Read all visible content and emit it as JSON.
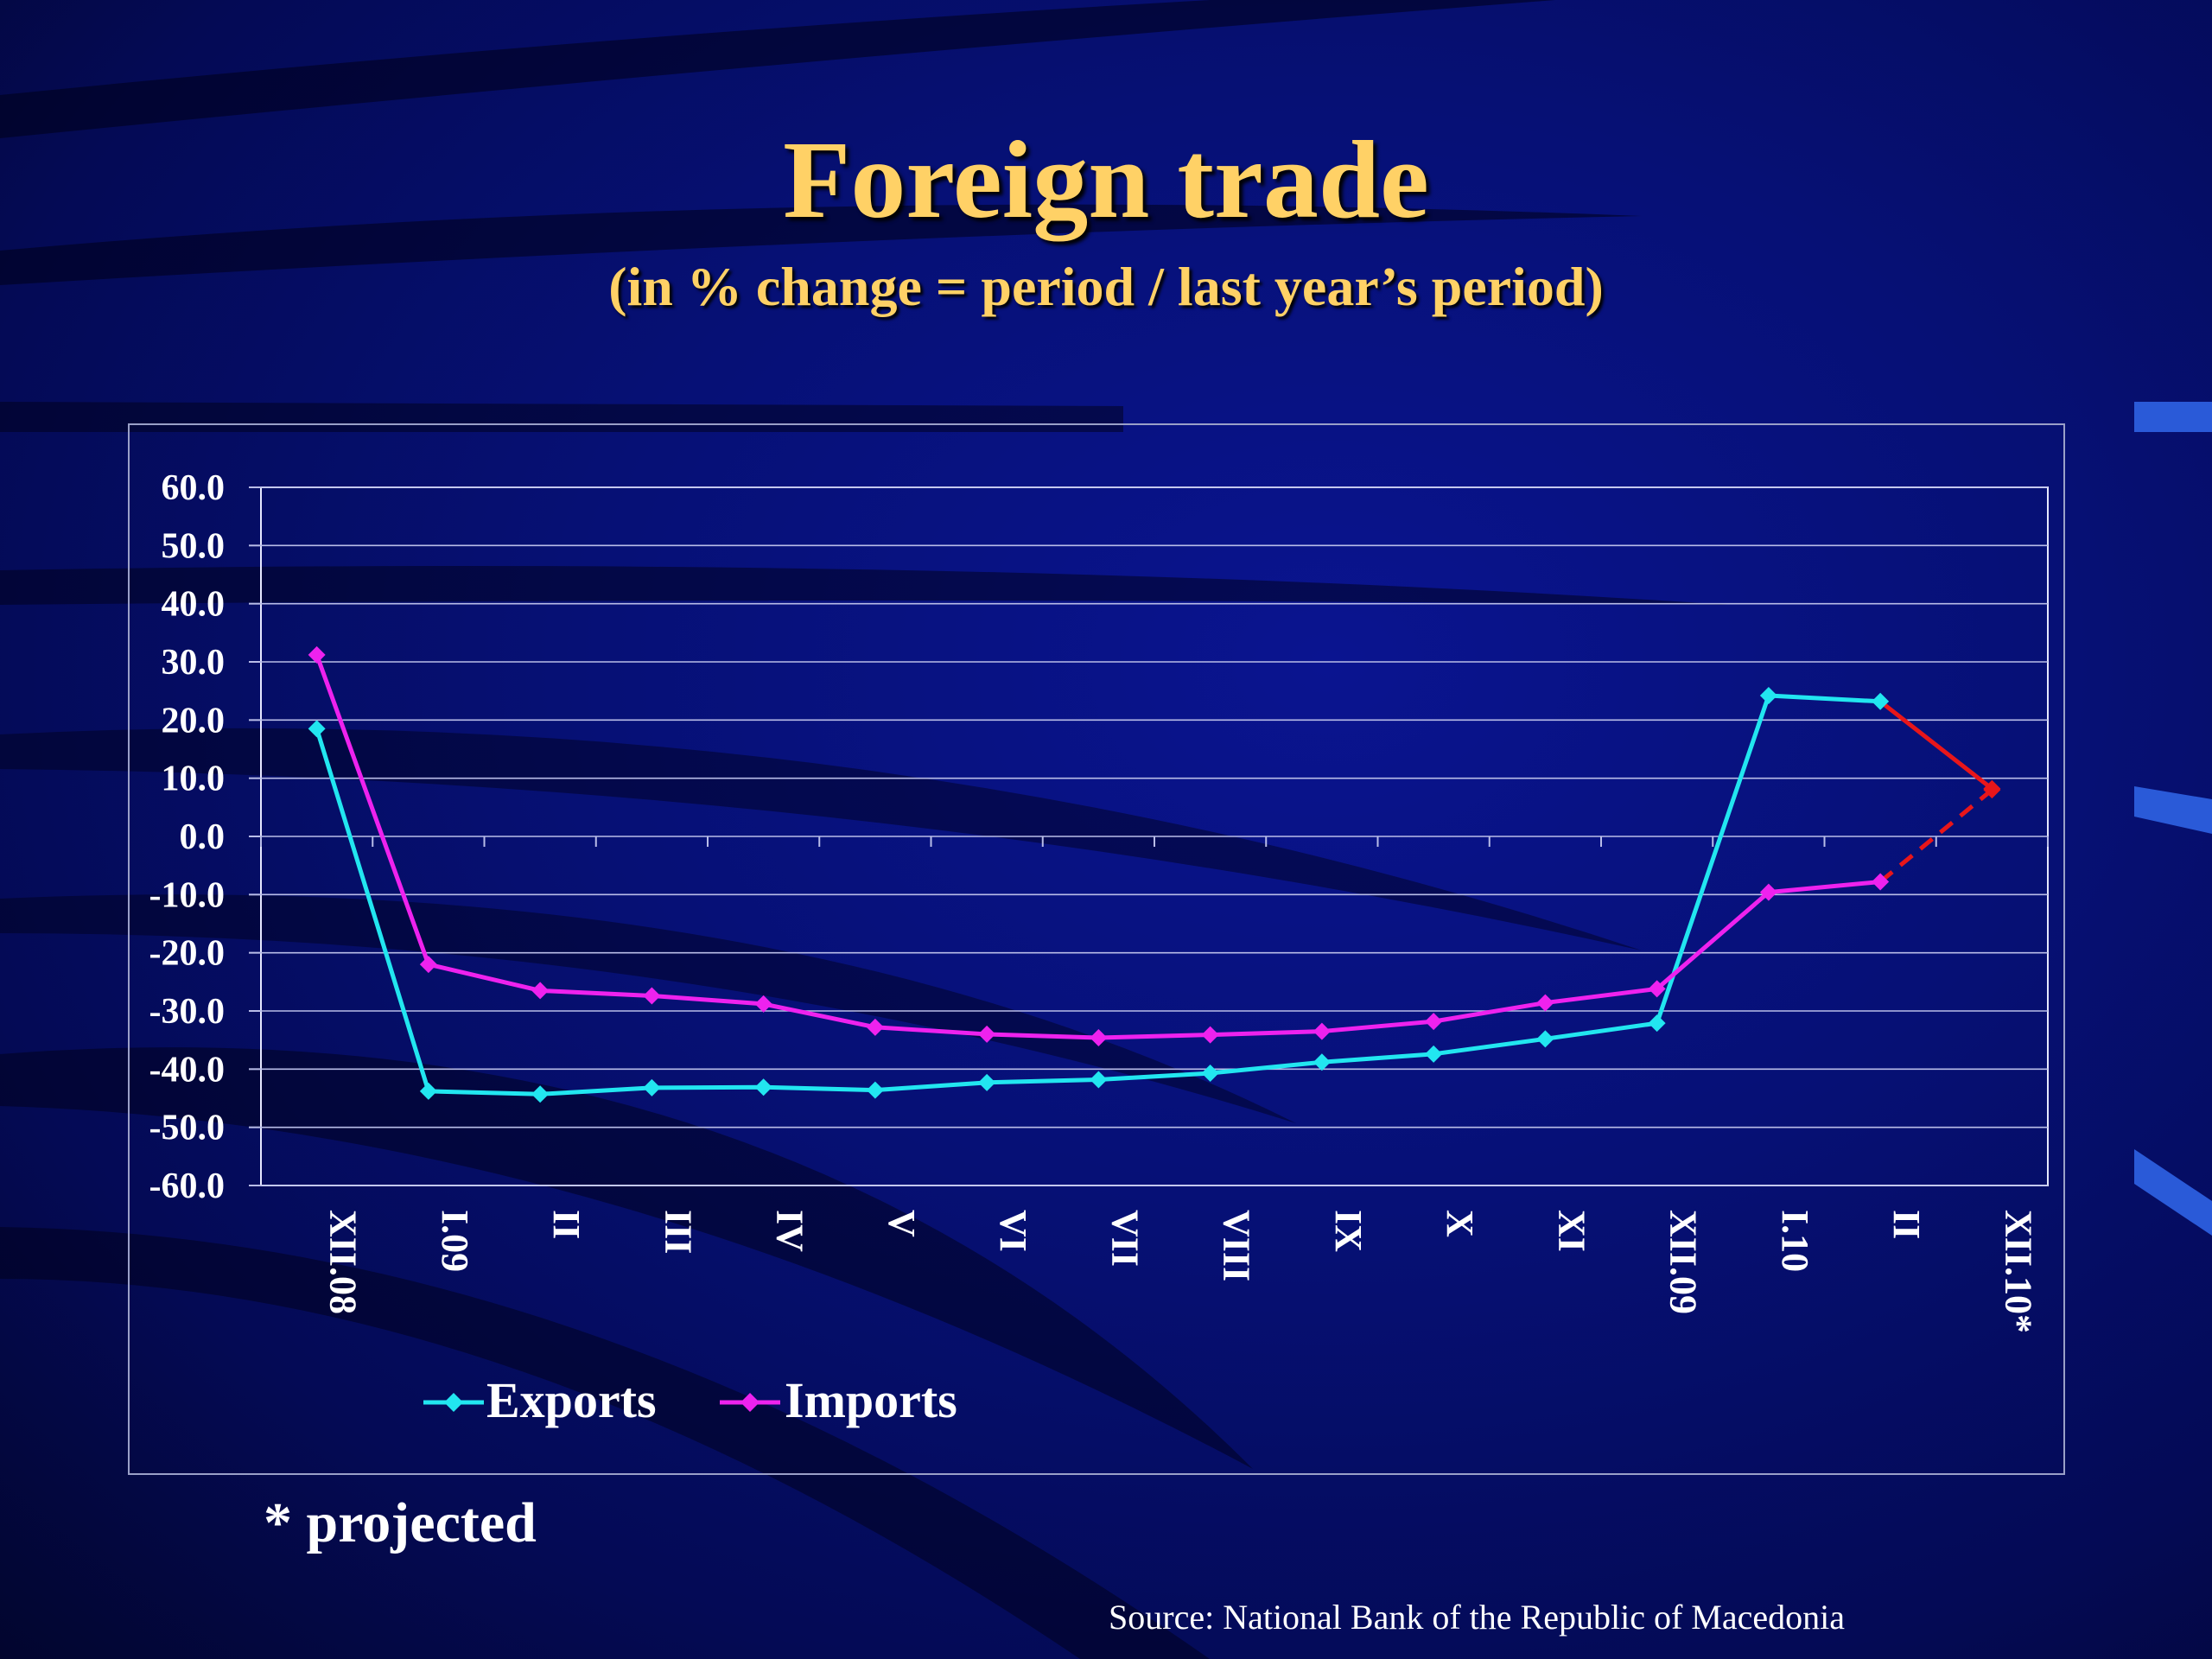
{
  "title": "Foreign trade",
  "subtitle": "(in % change = period / last year’s period)",
  "footnote": "* projected",
  "source": "Source: National Bank of the Republic of Macedonia",
  "colors": {
    "title": "#ffd166",
    "exports": "#22e6f0",
    "imports": "#ee22ee",
    "projection": "#e8161a",
    "grid": "#b9bde8",
    "axis_text": "#ffffff"
  },
  "chart_data": {
    "type": "line",
    "categories": [
      "XII.08",
      "I.09",
      "II",
      "III",
      "IV",
      "V",
      "VI",
      "VII",
      "VIII",
      "IX",
      "X",
      "XI",
      "XII.09",
      "I.10",
      "II",
      "XII.10*"
    ],
    "ylim": [
      -60,
      60
    ],
    "yticks": [
      "60.0",
      "50.0",
      "40.0",
      "30.0",
      "20.0",
      "10.0",
      "0.0",
      "-10.0",
      "-20.0",
      "-30.0",
      "-40.0",
      "-50.0",
      "-60.0"
    ],
    "grid": true,
    "legend_position": "bottom-left",
    "series": [
      {
        "name": "Exports",
        "color": "#22e6f0",
        "values": [
          18.5,
          -43.8,
          -44.3,
          -43.2,
          -43.1,
          -43.6,
          -42.3,
          -41.8,
          -40.7,
          -38.8,
          -37.4,
          -34.8,
          -32.1,
          24.2,
          23.2,
          8.2
        ]
      },
      {
        "name": "Imports",
        "color": "#ee22ee",
        "values": [
          31.2,
          -22.0,
          -26.5,
          -27.4,
          -28.8,
          -32.8,
          -34.0,
          -34.6,
          -34.1,
          -33.5,
          -31.8,
          -28.6,
          -26.2,
          -9.6,
          -7.8,
          8.0
        ]
      }
    ],
    "projection": {
      "from_category": "II",
      "to_category": "XII.10*",
      "color": "#e8161a"
    }
  }
}
